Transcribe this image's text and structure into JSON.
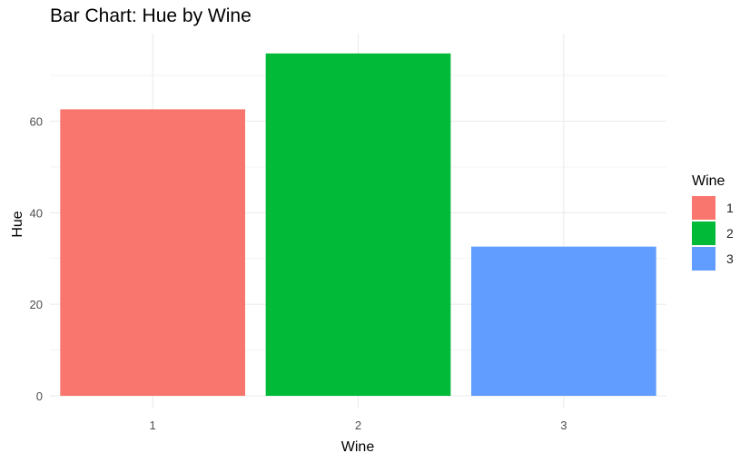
{
  "chart_data": {
    "type": "bar",
    "title": "Bar Chart: Hue by Wine",
    "xlabel": "Wine",
    "ylabel": "Hue",
    "categories": [
      "1",
      "2",
      "3"
    ],
    "values": [
      62.6,
      74.8,
      32.6
    ],
    "colors": [
      "#F8766D",
      "#00BA38",
      "#619CFF"
    ],
    "ylim": [
      0,
      78.5
    ],
    "yticks": [
      0,
      20,
      40,
      60
    ],
    "grid": true,
    "legend": {
      "title": "Wine",
      "position": "right",
      "entries": [
        "1",
        "2",
        "3"
      ]
    }
  }
}
